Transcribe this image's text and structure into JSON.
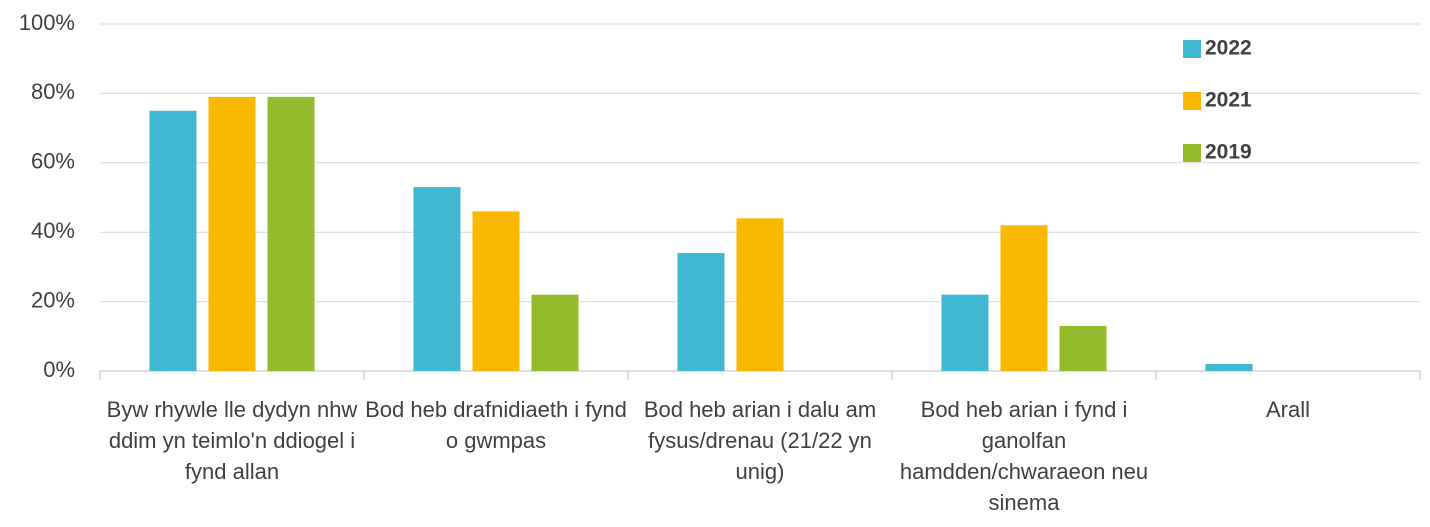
{
  "chart_data": {
    "type": "bar",
    "categories": [
      "Byw rhywle lle dydyn nhw ddim yn teimlo'n ddiogel i fynd allan",
      "Bod heb drafnidiaeth i fynd o gwmpas",
      "Bod heb arian i dalu am fysus/drenau (21/22 yn unig)",
      "Bod heb arian i fynd i ganolfan hamdden/chwaraeon neu sinema",
      "Arall"
    ],
    "series": [
      {
        "name": "2022",
        "color": "#41b8d2",
        "values": [
          75,
          53,
          34,
          22,
          2
        ]
      },
      {
        "name": "2021",
        "color": "#fbb800",
        "values": [
          79,
          46,
          44,
          42,
          null
        ]
      },
      {
        "name": "2019",
        "color": "#93bb2b",
        "values": [
          79,
          22,
          null,
          13,
          null
        ]
      }
    ],
    "ylim": [
      0,
      100
    ],
    "yticks": [
      {
        "value": 0,
        "label": "0%"
      },
      {
        "value": 20,
        "label": "20%"
      },
      {
        "value": 40,
        "label": "40%"
      },
      {
        "value": 60,
        "label": "60%"
      },
      {
        "value": 80,
        "label": "80%"
      },
      {
        "value": 100,
        "label": "100%"
      }
    ],
    "grid": true,
    "legend": "top-right"
  }
}
